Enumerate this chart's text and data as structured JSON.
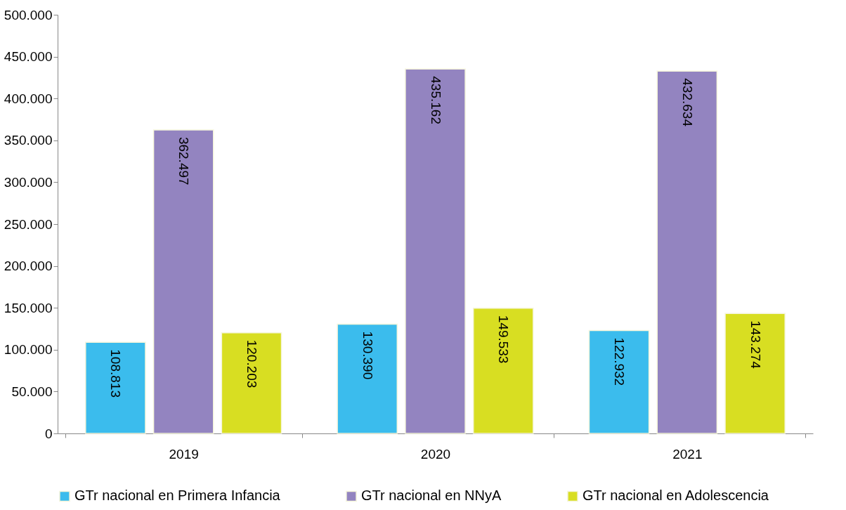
{
  "chart_data": {
    "type": "bar",
    "categories": [
      "2019",
      "2020",
      "2021"
    ],
    "series": [
      {
        "name": "GTr nacional en Primera Infancia",
        "color": "#3bbced",
        "values": [
          108813,
          130390,
          122932
        ],
        "value_labels": [
          "108.813",
          "130.390",
          "122.932"
        ]
      },
      {
        "name": "GTr nacional en NNyA",
        "color": "#9384c0",
        "values": [
          362497,
          435162,
          432634
        ],
        "value_labels": [
          "362.497",
          "435.162",
          "432.634"
        ]
      },
      {
        "name": "GTr nacional en Adolescencia",
        "color": "#d8de22",
        "values": [
          120203,
          149533,
          143274
        ],
        "value_labels": [
          "120.203",
          "149.533",
          "143.274"
        ]
      }
    ],
    "ylim": [
      0,
      500000
    ],
    "yticks": [
      {
        "value": 0,
        "label": "0"
      },
      {
        "value": 50000,
        "label": "50.000"
      },
      {
        "value": 100000,
        "label": "100.000"
      },
      {
        "value": 150000,
        "label": "150.000"
      },
      {
        "value": 200000,
        "label": "200.000"
      },
      {
        "value": 250000,
        "label": "250.000"
      },
      {
        "value": 300000,
        "label": "300.000"
      },
      {
        "value": 350000,
        "label": "350.000"
      },
      {
        "value": 400000,
        "label": "400.000"
      },
      {
        "value": 450000,
        "label": "450.000"
      },
      {
        "value": 500000,
        "label": "500.000"
      }
    ],
    "grid": false,
    "legend": "bottom"
  }
}
